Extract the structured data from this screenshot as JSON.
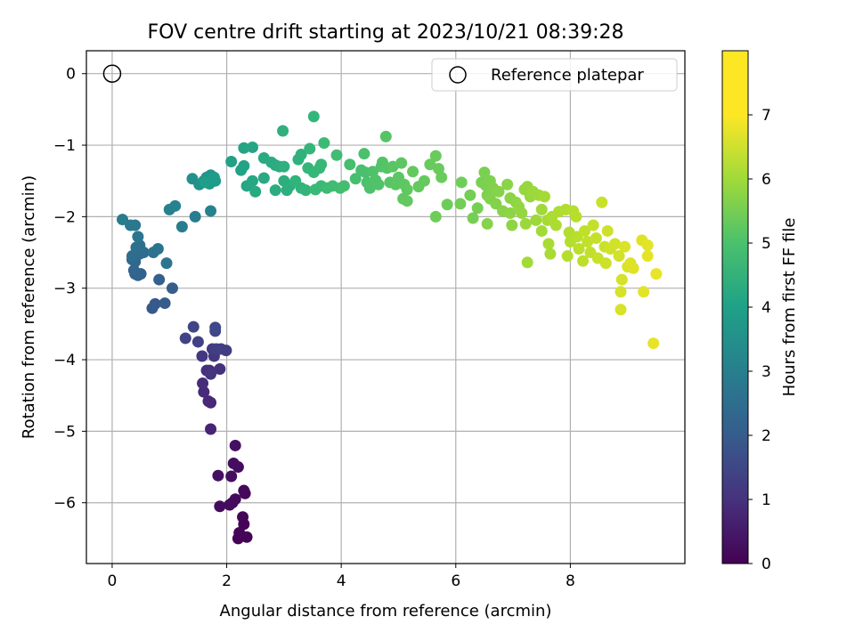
{
  "chart_data": {
    "type": "scatter",
    "title": "FOV centre drift starting at 2023/10/21 08:39:28",
    "xlabel": "Angular distance from reference (arcmin)",
    "ylabel": "Rotation from reference (arcmin)",
    "xlim": [
      -0.45,
      10.0
    ],
    "ylim": [
      -6.85,
      0.32
    ],
    "xticks": [
      0,
      2,
      4,
      6,
      8
    ],
    "yticks": [
      0,
      -1,
      -2,
      -3,
      -4,
      -5,
      -6
    ],
    "grid": true,
    "legend": {
      "position": "top-right",
      "label": "Reference platepar"
    },
    "reference_point": {
      "x": 0,
      "y": 0
    },
    "colorbar": {
      "label": "Hours from first FF file",
      "range": [
        0,
        8
      ],
      "ticks": [
        0,
        1,
        2,
        3,
        4,
        5,
        6,
        7
      ],
      "colormap": "viridis"
    },
    "points": [
      [
        2.2,
        -6.5,
        0.05
      ],
      [
        2.3,
        -6.3,
        0.07
      ],
      [
        2.35,
        -6.48,
        0.08
      ],
      [
        2.28,
        -6.2,
        0.1
      ],
      [
        2.22,
        -6.42,
        0.12
      ],
      [
        2.1,
        -6.0,
        0.14
      ],
      [
        2.32,
        -5.87,
        0.16
      ],
      [
        2.3,
        -5.83,
        0.18
      ],
      [
        2.15,
        -5.95,
        0.2
      ],
      [
        2.05,
        -6.03,
        0.22
      ],
      [
        1.88,
        -6.05,
        0.24
      ],
      [
        2.2,
        -5.5,
        0.26
      ],
      [
        2.12,
        -5.45,
        0.28
      ],
      [
        2.08,
        -5.63,
        0.3
      ],
      [
        1.85,
        -5.62,
        0.32
      ],
      [
        2.15,
        -5.2,
        0.34
      ],
      [
        1.72,
        -4.97,
        0.8
      ],
      [
        1.72,
        -4.6,
        0.85
      ],
      [
        1.68,
        -4.58,
        0.9
      ],
      [
        1.6,
        -4.45,
        0.95
      ],
      [
        1.58,
        -4.33,
        1.0
      ],
      [
        1.7,
        -4.15,
        1.05
      ],
      [
        1.65,
        -4.15,
        1.1
      ],
      [
        1.88,
        -4.13,
        1.15
      ],
      [
        1.72,
        -4.2,
        1.2
      ],
      [
        1.78,
        -3.95,
        1.25
      ],
      [
        1.57,
        -3.95,
        1.3
      ],
      [
        1.75,
        -3.85,
        1.35
      ],
      [
        1.9,
        -3.85,
        1.4
      ],
      [
        1.99,
        -3.87,
        1.45
      ],
      [
        1.82,
        -3.85,
        1.5
      ],
      [
        1.5,
        -3.75,
        1.55
      ],
      [
        1.28,
        -3.7,
        1.6
      ],
      [
        1.42,
        -3.54,
        1.65
      ],
      [
        1.8,
        -3.6,
        1.7
      ],
      [
        1.8,
        -3.55,
        1.72
      ],
      [
        0.7,
        -3.28,
        2.2
      ],
      [
        0.75,
        -3.22,
        2.25
      ],
      [
        0.92,
        -3.21,
        2.3
      ],
      [
        1.05,
        -3.0,
        2.35
      ],
      [
        0.82,
        -2.88,
        2.4
      ],
      [
        0.5,
        -2.8,
        2.45
      ],
      [
        0.45,
        -2.82,
        2.5
      ],
      [
        0.4,
        -2.8,
        2.55
      ],
      [
        0.38,
        -2.75,
        2.6
      ],
      [
        0.4,
        -2.63,
        2.65
      ],
      [
        0.35,
        -2.6,
        2.7
      ],
      [
        0.48,
        -2.52,
        2.75
      ],
      [
        0.55,
        -2.5,
        2.8
      ],
      [
        0.35,
        -2.55,
        2.85
      ],
      [
        0.42,
        -2.43,
        2.9
      ],
      [
        0.48,
        -2.4,
        2.95
      ],
      [
        0.72,
        -2.5,
        3.0
      ],
      [
        0.8,
        -2.45,
        3.05
      ],
      [
        0.95,
        -2.65,
        3.1
      ],
      [
        0.45,
        -2.28,
        3.15
      ],
      [
        0.4,
        -2.12,
        3.2
      ],
      [
        0.32,
        -2.12,
        3.25
      ],
      [
        0.18,
        -2.04,
        3.3
      ],
      [
        1.22,
        -2.14,
        3.35
      ],
      [
        1.45,
        -2.0,
        3.4
      ],
      [
        1.0,
        -1.9,
        3.5
      ],
      [
        1.1,
        -1.85,
        3.55
      ],
      [
        1.72,
        -1.92,
        3.6
      ],
      [
        1.4,
        -1.47,
        4.0
      ],
      [
        1.52,
        -1.55,
        4.05
      ],
      [
        1.6,
        -1.5,
        4.1
      ],
      [
        1.65,
        -1.45,
        4.15
      ],
      [
        1.72,
        -1.42,
        4.2
      ],
      [
        1.75,
        -1.48,
        4.25
      ],
      [
        1.7,
        -1.54,
        4.3
      ],
      [
        1.8,
        -1.5,
        4.35
      ],
      [
        1.78,
        -1.45,
        4.4
      ],
      [
        1.62,
        -1.52,
        4.45
      ],
      [
        2.08,
        -1.23,
        4.55
      ],
      [
        2.25,
        -1.35,
        4.6
      ],
      [
        2.3,
        -1.29,
        4.62
      ],
      [
        2.3,
        -1.04,
        4.65
      ],
      [
        2.45,
        -1.03,
        4.7
      ],
      [
        2.35,
        -1.57,
        4.72
      ],
      [
        2.45,
        -1.5,
        4.75
      ],
      [
        2.5,
        -1.65,
        4.8
      ],
      [
        2.65,
        -1.46,
        4.85
      ],
      [
        2.65,
        -1.18,
        4.88
      ],
      [
        2.78,
        -1.24,
        4.9
      ],
      [
        2.85,
        -1.28,
        4.92
      ],
      [
        2.92,
        -1.3,
        4.95
      ],
      [
        2.85,
        -1.63,
        4.98
      ],
      [
        3.0,
        -1.5,
        5.0
      ],
      [
        3.05,
        -1.63,
        5.02
      ],
      [
        3.1,
        -1.57,
        5.05
      ],
      [
        3.0,
        -1.3,
        5.08
      ],
      [
        2.98,
        -0.8,
        5.1
      ],
      [
        3.25,
        -1.2,
        5.12
      ],
      [
        3.3,
        -1.13,
        5.15
      ],
      [
        3.2,
        -1.5,
        5.18
      ],
      [
        3.3,
        -1.6,
        5.2
      ],
      [
        3.38,
        -1.63,
        5.22
      ],
      [
        3.45,
        -1.05,
        5.25
      ],
      [
        3.52,
        -0.6,
        5.28
      ],
      [
        3.42,
        -1.32,
        5.3
      ],
      [
        3.52,
        -1.38,
        5.32
      ],
      [
        3.62,
        -1.32,
        5.35
      ],
      [
        3.65,
        -1.27,
        5.38
      ],
      [
        3.55,
        -1.62,
        5.4
      ],
      [
        3.65,
        -1.57,
        5.42
      ],
      [
        3.7,
        -0.97,
        5.45
      ],
      [
        3.75,
        -1.6,
        5.48
      ],
      [
        3.85,
        -1.57,
        5.5
      ],
      [
        3.92,
        -1.14,
        5.52
      ],
      [
        3.98,
        -1.6,
        5.55
      ],
      [
        4.05,
        -1.57,
        5.58
      ],
      [
        4.15,
        -1.27,
        5.6
      ],
      [
        4.25,
        -1.47,
        5.62
      ],
      [
        4.35,
        -1.35,
        5.64
      ],
      [
        4.42,
        -1.38,
        5.66
      ],
      [
        4.4,
        -1.12,
        5.68
      ],
      [
        4.45,
        -1.52,
        5.7
      ],
      [
        4.5,
        -1.6,
        5.72
      ],
      [
        4.55,
        -1.37,
        5.74
      ],
      [
        4.6,
        -1.49,
        5.76
      ],
      [
        4.65,
        -1.55,
        5.78
      ],
      [
        4.7,
        -1.3,
        5.8
      ],
      [
        4.72,
        -1.24,
        5.82
      ],
      [
        4.8,
        -1.32,
        5.84
      ],
      [
        4.78,
        -0.88,
        5.86
      ],
      [
        4.85,
        -1.52,
        5.88
      ],
      [
        4.9,
        -1.3,
        5.9
      ],
      [
        4.95,
        -1.55,
        5.92
      ],
      [
        5.0,
        -1.45,
        5.94
      ],
      [
        5.05,
        -1.25,
        5.96
      ],
      [
        5.1,
        -1.55,
        5.98
      ],
      [
        5.15,
        -1.62,
        6.0
      ],
      [
        5.08,
        -1.75,
        6.02
      ],
      [
        5.15,
        -1.78,
        6.04
      ],
      [
        5.25,
        -1.37,
        6.06
      ],
      [
        5.35,
        -1.58,
        6.08
      ],
      [
        5.45,
        -1.5,
        6.1
      ],
      [
        5.55,
        -1.27,
        6.12
      ],
      [
        5.65,
        -1.15,
        6.14
      ],
      [
        5.7,
        -1.33,
        6.16
      ],
      [
        5.75,
        -1.45,
        6.18
      ],
      [
        5.85,
        -1.83,
        6.2
      ],
      [
        5.65,
        -2.0,
        6.22
      ],
      [
        6.1,
        -1.52,
        6.25
      ],
      [
        6.08,
        -1.82,
        6.28
      ],
      [
        6.25,
        -1.7,
        6.3
      ],
      [
        6.3,
        -2.02,
        6.32
      ],
      [
        6.38,
        -1.88,
        6.34
      ],
      [
        6.45,
        -1.52,
        6.36
      ],
      [
        6.5,
        -1.38,
        6.38
      ],
      [
        6.52,
        -1.56,
        6.4
      ],
      [
        6.55,
        -1.7,
        6.42
      ],
      [
        6.6,
        -1.5,
        6.44
      ],
      [
        6.65,
        -1.6,
        6.46
      ],
      [
        6.6,
        -1.75,
        6.48
      ],
      [
        6.7,
        -1.82,
        6.5
      ],
      [
        6.55,
        -2.1,
        6.52
      ],
      [
        6.75,
        -1.65,
        6.54
      ],
      [
        6.82,
        -1.92,
        6.56
      ],
      [
        6.9,
        -1.55,
        6.58
      ],
      [
        6.95,
        -1.74,
        6.6
      ],
      [
        6.95,
        -1.95,
        6.62
      ],
      [
        6.98,
        -2.12,
        6.64
      ],
      [
        7.05,
        -1.8,
        6.66
      ],
      [
        7.1,
        -1.86,
        6.68
      ],
      [
        7.15,
        -1.95,
        6.7
      ],
      [
        7.2,
        -1.62,
        6.72
      ],
      [
        7.25,
        -1.58,
        6.74
      ],
      [
        7.3,
        -1.72,
        6.76
      ],
      [
        7.22,
        -2.1,
        6.78
      ],
      [
        7.35,
        -1.65,
        6.8
      ],
      [
        7.4,
        -2.05,
        6.82
      ],
      [
        7.45,
        -1.7,
        6.84
      ],
      [
        7.5,
        -1.9,
        6.86
      ],
      [
        7.5,
        -2.2,
        6.88
      ],
      [
        7.25,
        -2.64,
        6.9
      ],
      [
        7.55,
        -1.72,
        6.92
      ],
      [
        7.6,
        -2.05,
        6.94
      ],
      [
        7.65,
        -2.52,
        6.96
      ],
      [
        7.62,
        -2.38,
        6.98
      ],
      [
        7.68,
        -2.0,
        7.0
      ],
      [
        7.75,
        -2.12,
        7.02
      ],
      [
        7.8,
        -1.93,
        7.04
      ],
      [
        7.92,
        -1.9,
        7.06
      ],
      [
        7.98,
        -2.22,
        7.08
      ],
      [
        8.0,
        -2.35,
        7.1
      ],
      [
        7.95,
        -2.55,
        7.12
      ],
      [
        8.05,
        -1.92,
        7.14
      ],
      [
        8.1,
        -2.0,
        7.16
      ],
      [
        8.12,
        -2.28,
        7.18
      ],
      [
        8.15,
        -2.45,
        7.2
      ],
      [
        8.22,
        -2.62,
        7.22
      ],
      [
        8.25,
        -2.2,
        7.24
      ],
      [
        8.3,
        -2.35,
        7.26
      ],
      [
        8.35,
        -2.5,
        7.28
      ],
      [
        8.4,
        -2.12,
        7.3
      ],
      [
        8.45,
        -2.3,
        7.32
      ],
      [
        8.48,
        -2.58,
        7.34
      ],
      [
        8.55,
        -1.8,
        7.36
      ],
      [
        8.6,
        -2.42,
        7.38
      ],
      [
        8.62,
        -2.65,
        7.4
      ],
      [
        8.65,
        -2.2,
        7.42
      ],
      [
        8.7,
        -2.45,
        7.44
      ],
      [
        8.78,
        -2.38,
        7.46
      ],
      [
        8.85,
        -2.55,
        7.48
      ],
      [
        8.9,
        -2.88,
        7.5
      ],
      [
        8.88,
        -3.05,
        7.52
      ],
      [
        8.88,
        -3.3,
        7.54
      ],
      [
        8.95,
        -2.42,
        7.56
      ],
      [
        9.0,
        -2.7,
        7.58
      ],
      [
        9.05,
        -2.65,
        7.6
      ],
      [
        9.1,
        -2.72,
        7.62
      ],
      [
        9.25,
        -2.33,
        7.64
      ],
      [
        9.28,
        -3.05,
        7.66
      ],
      [
        9.35,
        -2.4,
        7.68
      ],
      [
        9.35,
        -2.55,
        7.7
      ],
      [
        9.45,
        -3.77,
        7.72
      ],
      [
        9.5,
        -2.8,
        7.74
      ]
    ]
  }
}
